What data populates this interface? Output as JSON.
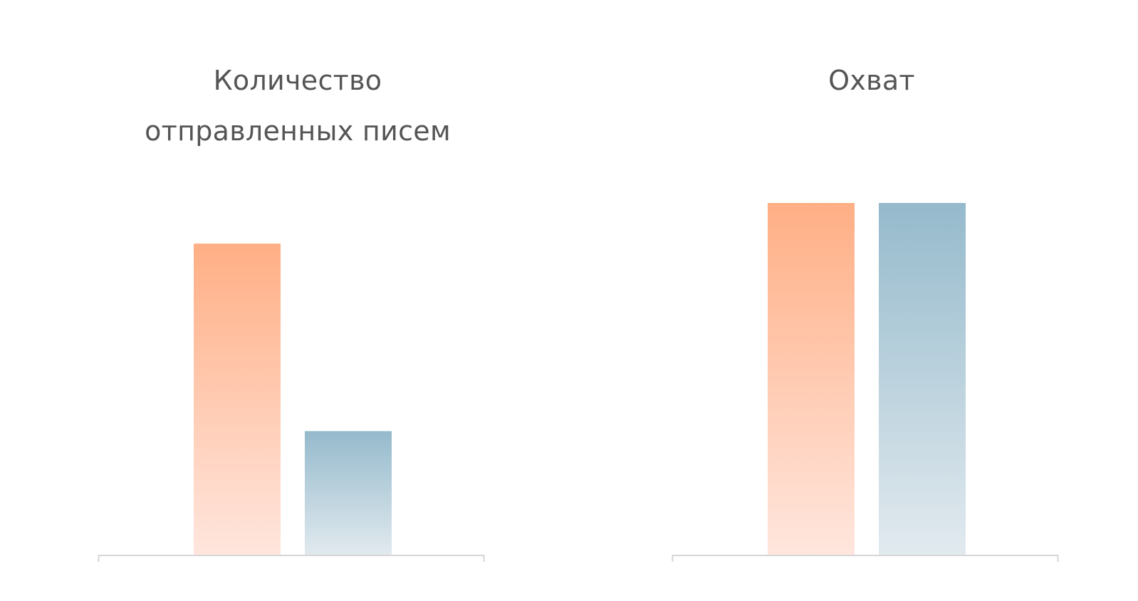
{
  "colors": {
    "series_a_top": "#FFAF85",
    "series_a_bottom": "#FFE6DE",
    "series_b_top": "#95BACC",
    "series_b_bottom": "#E2EAEF",
    "axis": "#D6D6D6",
    "title_text": "#555555"
  },
  "chart_data": [
    {
      "type": "bar",
      "title_lines": [
        "Количество",
        "отправленных писем"
      ],
      "title": "Количество отправленных писем",
      "categories": [
        ""
      ],
      "series": [
        {
          "values": [
            100
          ]
        },
        {
          "values": [
            40
          ]
        }
      ],
      "ylim": [
        0,
        113
      ],
      "grid": false,
      "legend": "none"
    },
    {
      "type": "bar",
      "title_lines": [
        "Охват"
      ],
      "title": "Охват",
      "categories": [
        ""
      ],
      "series": [
        {
          "values": [
            100
          ]
        },
        {
          "values": [
            100
          ]
        }
      ],
      "ylim": [
        0,
        100
      ],
      "grid": false,
      "legend": "none"
    }
  ]
}
